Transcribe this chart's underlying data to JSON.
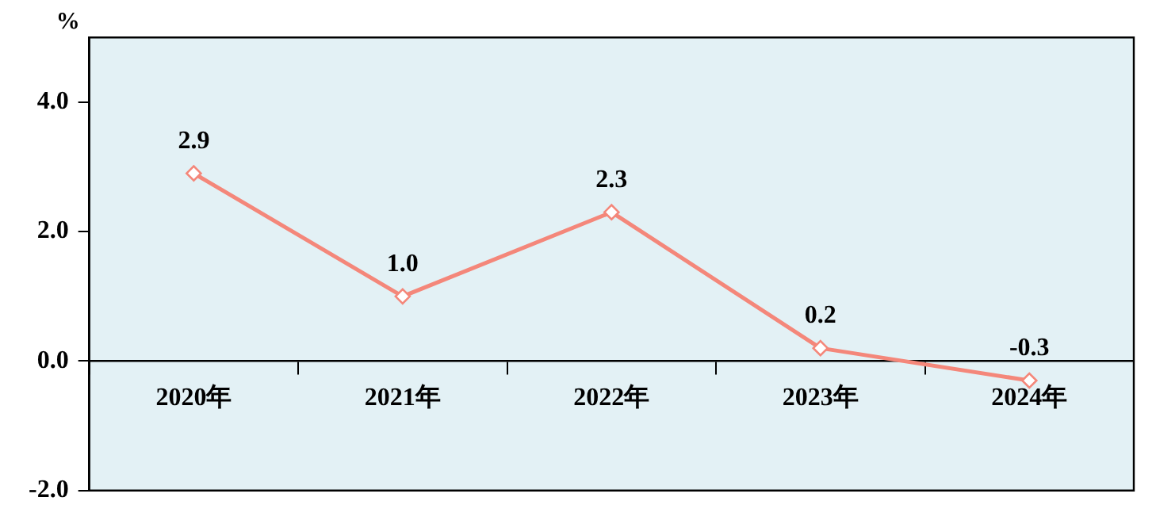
{
  "chart_data": {
    "type": "line",
    "ylabel": "%",
    "categories": [
      "2020年",
      "2021年",
      "2022年",
      "2023年",
      "2024年"
    ],
    "series": [
      {
        "color": "#f4877a",
        "values": [
          2.9,
          1.0,
          2.3,
          0.2,
          -0.3
        ],
        "value_labels": [
          "2.9",
          "1.0",
          "2.3",
          "0.2",
          "-0.3"
        ]
      }
    ],
    "ylim": [
      -2,
      5
    ],
    "yticks": [
      {
        "value": -2,
        "label": "-2.0"
      },
      {
        "value": 0,
        "label": "0.0"
      },
      {
        "value": 2,
        "label": "2.0"
      },
      {
        "value": 4,
        "label": "4.0"
      }
    ],
    "grid": false,
    "legend": false,
    "marker": "diamond",
    "line_style": "solid"
  }
}
